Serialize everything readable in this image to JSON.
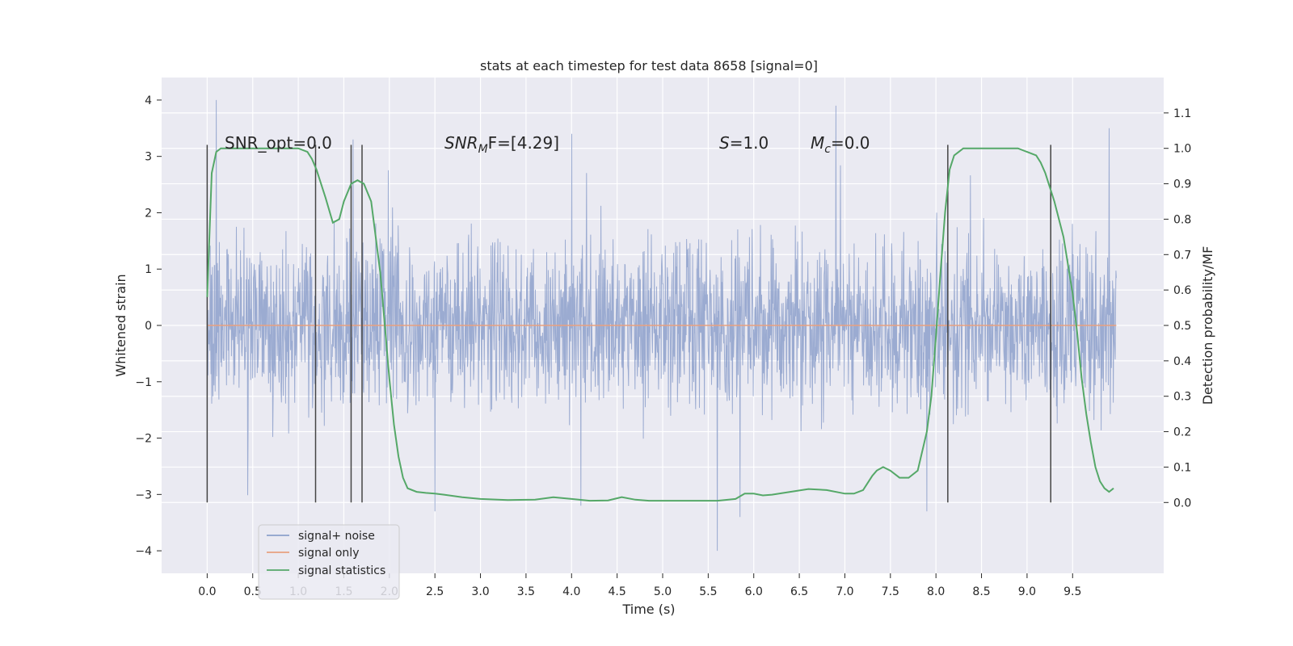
{
  "chart_data": {
    "type": "line",
    "title": "stats at each timestep for test data 8658 [signal=0]",
    "xlabel": "Time (s)",
    "ylabel": "Whitened strain",
    "y2label": "Detection probability/MF",
    "xlim": [
      -0.5,
      10.5
    ],
    "ylim": [
      -4.4,
      4.4
    ],
    "y2lim": [
      -0.2,
      1.2
    ],
    "grid": true,
    "x_ticks": [
      "0.0",
      "0.5",
      "1.0",
      "1.5",
      "2.0",
      "2.5",
      "3.0",
      "3.5",
      "4.0",
      "4.5",
      "5.0",
      "5.5",
      "6.0",
      "6.5",
      "7.0",
      "7.5",
      "8.0",
      "8.5",
      "9.0",
      "9.5"
    ],
    "y_ticks": [
      "4",
      "3",
      "2",
      "1",
      "0",
      "−1",
      "−2",
      "−3",
      "−4"
    ],
    "y2_ticks": [
      "1.1",
      "1.0",
      "0.9",
      "0.8",
      "0.7",
      "0.6",
      "0.5",
      "0.4",
      "0.3",
      "0.2",
      "0.1",
      "0.0"
    ],
    "annotations": {
      "snr_opt": "SNR_opt=0.0",
      "snr_mf_base": "SNR",
      "snr_mf_sub": "M",
      "snr_mf_rest": "F=[4.29]",
      "s_italic": "S",
      "s_rest": "=1.0",
      "mc_base": "M",
      "mc_sub": "c",
      "mc_rest": "=0.0"
    },
    "markers_x": [
      0.0,
      1.19,
      1.58,
      1.7,
      8.13,
      9.26
    ],
    "legend": {
      "placement": "lower-left",
      "entries": [
        "signal+ noise",
        "signal only",
        "signal statistics"
      ]
    },
    "colors": {
      "noise": "#8da0cb",
      "signal": "#e8a07f",
      "stats": "#55a868",
      "plot_bg": "#eaeaf2",
      "grid": "#ffffff",
      "marker": "#444444"
    },
    "series": [
      {
        "name": "signal+ noise",
        "axis": "left",
        "description_range": [
          -3.3,
          4.0
        ],
        "t_start": 0.0,
        "t_end": 9.98,
        "spikes": [
          [
            0.1,
            4.0
          ],
          [
            5.6,
            -4.0
          ],
          [
            6.9,
            3.9
          ],
          [
            9.9,
            3.5
          ],
          [
            2.5,
            -3.3
          ],
          [
            7.9,
            -3.3
          ],
          [
            5.85,
            -3.4
          ],
          [
            1.6,
            3.3
          ],
          [
            4.1,
            -3.2
          ],
          [
            4.0,
            3.4
          ]
        ]
      },
      {
        "name": "signal only",
        "axis": "left",
        "x": [
          0.0,
          9.98
        ],
        "y": [
          0.0,
          0.0
        ]
      },
      {
        "name": "signal statistics",
        "axis": "right",
        "x": [
          0.0,
          0.05,
          0.1,
          0.15,
          0.2,
          0.3,
          0.5,
          0.7,
          0.9,
          1.0,
          1.1,
          1.15,
          1.2,
          1.3,
          1.38,
          1.45,
          1.5,
          1.58,
          1.65,
          1.72,
          1.8,
          1.9,
          1.95,
          2.0,
          2.05,
          2.1,
          2.15,
          2.2,
          2.3,
          2.4,
          2.5,
          2.6,
          2.8,
          3.0,
          3.3,
          3.6,
          3.8,
          4.0,
          4.2,
          4.4,
          4.55,
          4.7,
          4.85,
          5.0,
          5.3,
          5.6,
          5.8,
          5.9,
          6.0,
          6.1,
          6.2,
          6.4,
          6.6,
          6.8,
          7.0,
          7.1,
          7.2,
          7.3,
          7.35,
          7.42,
          7.5,
          7.6,
          7.7,
          7.8,
          7.9,
          7.95,
          8.0,
          8.05,
          8.1,
          8.15,
          8.2,
          8.25,
          8.3,
          8.4,
          8.5,
          8.7,
          8.9,
          9.0,
          9.1,
          9.15,
          9.2,
          9.3,
          9.4,
          9.5,
          9.55,
          9.6,
          9.65,
          9.7,
          9.75,
          9.8,
          9.85,
          9.9,
          9.95
        ],
        "y": [
          0.58,
          0.93,
          0.99,
          1.0,
          1.0,
          1.0,
          1.0,
          1.0,
          1.0,
          1.0,
          0.99,
          0.97,
          0.94,
          0.86,
          0.79,
          0.8,
          0.85,
          0.9,
          0.91,
          0.9,
          0.85,
          0.65,
          0.5,
          0.35,
          0.22,
          0.13,
          0.07,
          0.04,
          0.03,
          0.027,
          0.025,
          0.022,
          0.015,
          0.01,
          0.007,
          0.008,
          0.015,
          0.01,
          0.005,
          0.006,
          0.015,
          0.008,
          0.005,
          0.005,
          0.005,
          0.005,
          0.01,
          0.025,
          0.025,
          0.02,
          0.022,
          0.03,
          0.038,
          0.035,
          0.025,
          0.025,
          0.035,
          0.075,
          0.09,
          0.1,
          0.09,
          0.07,
          0.07,
          0.09,
          0.2,
          0.3,
          0.47,
          0.65,
          0.82,
          0.94,
          0.98,
          0.99,
          1.0,
          1.0,
          1.0,
          1.0,
          1.0,
          0.99,
          0.98,
          0.96,
          0.93,
          0.85,
          0.75,
          0.59,
          0.48,
          0.35,
          0.25,
          0.17,
          0.1,
          0.06,
          0.04,
          0.03,
          0.04
        ]
      }
    ]
  }
}
